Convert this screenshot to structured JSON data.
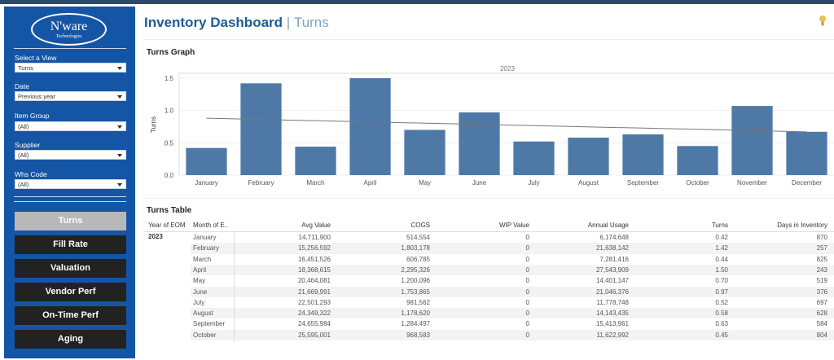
{
  "sidebar": {
    "logo_main": "N'ware",
    "logo_sub": "Technologies",
    "filters": [
      {
        "label": "Select a View",
        "value": "Turns"
      },
      {
        "label": "Date",
        "value": "Previous year"
      },
      {
        "label": "Item Group",
        "value": "(All)"
      },
      {
        "label": "Supplier",
        "value": "(All)"
      },
      {
        "label": "Whs Code",
        "value": "(All)"
      }
    ],
    "nav": [
      "Turns",
      "Fill Rate",
      "Valuation",
      "Vendor Perf",
      "On-Time Perf",
      "Aging"
    ],
    "active_nav": "Turns"
  },
  "header": {
    "title": "Inventory Dashboard",
    "separator": "|",
    "subtitle": "Turns",
    "help_icon": "lightbulb-icon"
  },
  "graph": {
    "section_title": "Turns Graph"
  },
  "chart_data": {
    "type": "bar",
    "title": "2023",
    "ylabel": "Turns",
    "xlabel": "",
    "categories": [
      "January",
      "February",
      "March",
      "April",
      "May",
      "June",
      "July",
      "August",
      "September",
      "October",
      "November",
      "December"
    ],
    "values": [
      0.42,
      1.42,
      0.44,
      1.5,
      0.7,
      0.97,
      0.52,
      0.58,
      0.63,
      0.45,
      1.07,
      0.67
    ],
    "ylim": [
      0,
      1.55
    ],
    "yticks": [
      "0.0",
      "0.5",
      "1.0",
      "1.5"
    ],
    "trend_line": [
      0.88,
      0.67
    ],
    "bar_color": "#4e79a7",
    "grid": "horizontal"
  },
  "table": {
    "section_title": "Turns Table",
    "columns": [
      "Year of EOM",
      "Month of E..",
      "Avg Value",
      "COGS",
      "WIP Value",
      "Annual Usage",
      "Turns",
      "Days in Inventory"
    ],
    "year": "2023",
    "rows": [
      [
        "January",
        "14,711,900",
        "514,554",
        "0",
        "6,174,648",
        "0.42",
        "870"
      ],
      [
        "February",
        "15,256,592",
        "1,803,178",
        "0",
        "21,638,142",
        "1.42",
        "257"
      ],
      [
        "March",
        "16,451,526",
        "606,785",
        "0",
        "7,281,416",
        "0.44",
        "825"
      ],
      [
        "April",
        "18,368,615",
        "2,295,326",
        "0",
        "27,543,909",
        "1.50",
        "243"
      ],
      [
        "May",
        "20,464,081",
        "1,200,096",
        "0",
        "14,401,147",
        "0.70",
        "519"
      ],
      [
        "June",
        "21,669,991",
        "1,753,865",
        "0",
        "21,046,376",
        "0.97",
        "376"
      ],
      [
        "July",
        "22,501,293",
        "981,562",
        "0",
        "11,778,748",
        "0.52",
        "697"
      ],
      [
        "August",
        "24,349,322",
        "1,178,620",
        "0",
        "14,143,435",
        "0.58",
        "628"
      ],
      [
        "September",
        "24,655,984",
        "1,284,497",
        "0",
        "15,413,961",
        "0.63",
        "584"
      ],
      [
        "October",
        "25,595,001",
        "968,583",
        "0",
        "11,622,992",
        "0.45",
        "804"
      ]
    ]
  }
}
